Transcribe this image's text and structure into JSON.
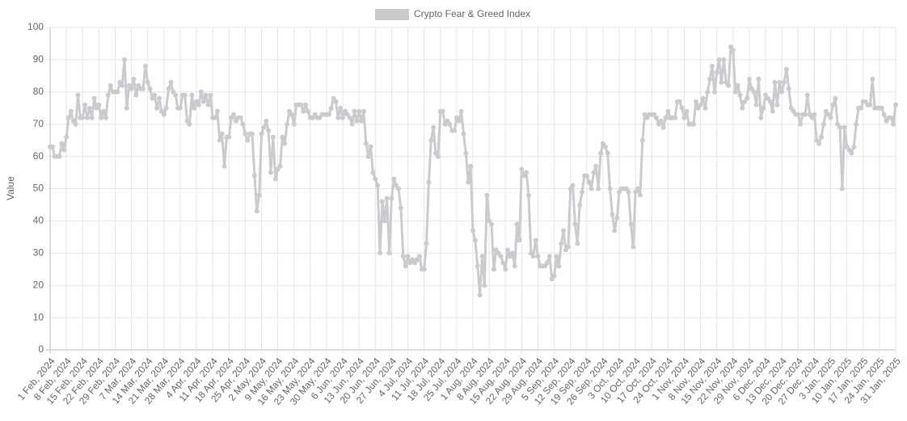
{
  "chart_data": {
    "type": "line",
    "y_label": "Value",
    "legend": "top",
    "ylim": [
      0,
      100
    ],
    "yticks": [
      0,
      10,
      20,
      30,
      40,
      50,
      60,
      70,
      80,
      90,
      100
    ],
    "grid": true,
    "categories": [
      "1 Feb, 2024",
      null,
      null,
      null,
      null,
      null,
      null,
      "8 Feb, 2024",
      null,
      null,
      null,
      null,
      null,
      null,
      "15 Feb, 2024",
      null,
      null,
      null,
      null,
      null,
      null,
      "22 Feb, 2024",
      null,
      null,
      null,
      null,
      null,
      null,
      "29 Feb, 2024",
      null,
      null,
      null,
      null,
      null,
      null,
      "7 Mar, 2024",
      null,
      null,
      null,
      null,
      null,
      null,
      "14 Mar, 2024",
      null,
      null,
      null,
      null,
      null,
      null,
      "21 Mar, 2024",
      null,
      null,
      null,
      null,
      null,
      null,
      "28 Mar, 2024",
      null,
      null,
      null,
      null,
      null,
      null,
      "4 Apr, 2024",
      null,
      null,
      null,
      null,
      null,
      null,
      "11 Apr, 2024",
      null,
      null,
      null,
      null,
      null,
      null,
      "18 Apr, 2024",
      null,
      null,
      null,
      null,
      null,
      null,
      "25 Apr, 2024",
      null,
      null,
      null,
      null,
      null,
      null,
      "2 May, 2024",
      null,
      null,
      null,
      null,
      null,
      null,
      "9 May, 2024",
      null,
      null,
      null,
      null,
      null,
      null,
      "16 May, 2024",
      null,
      null,
      null,
      null,
      null,
      null,
      "23 May, 2024",
      null,
      null,
      null,
      null,
      null,
      null,
      "30 May, 2024",
      null,
      null,
      null,
      null,
      null,
      null,
      "6 Jun, 2024",
      null,
      null,
      null,
      null,
      null,
      null,
      "13 Jun, 2024",
      null,
      null,
      null,
      null,
      null,
      null,
      "20 Jun, 2024",
      null,
      null,
      null,
      null,
      null,
      null,
      "27 Jun, 2024",
      null,
      null,
      null,
      null,
      null,
      null,
      "4 Jul, 2024",
      null,
      null,
      null,
      null,
      null,
      null,
      "11 Jul, 2024",
      null,
      null,
      null,
      null,
      null,
      null,
      "18 Jul, 2024",
      null,
      null,
      null,
      null,
      null,
      null,
      "25 Jul, 2024",
      null,
      null,
      null,
      null,
      null,
      null,
      "1 Aug, 2024",
      null,
      null,
      null,
      null,
      null,
      null,
      "8 Aug, 2024",
      null,
      null,
      null,
      null,
      null,
      null,
      "15 Aug, 2024",
      null,
      null,
      null,
      null,
      null,
      null,
      "22 Aug, 2024",
      null,
      null,
      null,
      null,
      null,
      null,
      "29 Aug, 2024",
      null,
      null,
      null,
      null,
      null,
      null,
      "5 Sep, 2024",
      null,
      null,
      null,
      null,
      null,
      null,
      "12 Sep, 2024",
      null,
      null,
      null,
      null,
      null,
      null,
      "19 Sep, 2024",
      null,
      null,
      null,
      null,
      null,
      null,
      "26 Sep, 2024",
      null,
      null,
      null,
      null,
      null,
      null,
      "3 Oct, 2024",
      null,
      null,
      null,
      null,
      null,
      null,
      "10 Oct, 2024",
      null,
      null,
      null,
      null,
      null,
      null,
      "17 Oct, 2024",
      null,
      null,
      null,
      null,
      null,
      null,
      "24 Oct, 2024",
      null,
      null,
      null,
      null,
      null,
      null,
      "1 Nov, 2024",
      null,
      null,
      null,
      null,
      null,
      null,
      "8 Nov, 2024",
      null,
      null,
      null,
      null,
      null,
      null,
      "15 Nov, 2024",
      null,
      null,
      null,
      null,
      null,
      null,
      "22 Nov, 2024",
      null,
      null,
      null,
      null,
      null,
      null,
      "29 Nov, 2024",
      null,
      null,
      null,
      null,
      null,
      null,
      "6 Dec, 2024",
      null,
      null,
      null,
      null,
      null,
      null,
      "13 Dec, 2024",
      null,
      null,
      null,
      null,
      null,
      null,
      "20 Dec, 2024",
      null,
      null,
      null,
      null,
      null,
      null,
      "27 Dec, 2024",
      null,
      null,
      null,
      null,
      null,
      null,
      "3 Jan, 2025",
      null,
      null,
      null,
      null,
      null,
      null,
      "10 Jan, 2025",
      null,
      null,
      null,
      null,
      null,
      null,
      "17 Jan, 2025",
      null,
      null,
      null,
      null,
      null,
      null,
      "24 Jan, 2025",
      null,
      null,
      null,
      null,
      null,
      null,
      "31 Jan, 2025"
    ],
    "series": [
      {
        "name": "Crypto Fear & Greed Index",
        "color": "#c9cbcf",
        "values": [
          63,
          63,
          60,
          60,
          60,
          64,
          62,
          66,
          72,
          74,
          71,
          70,
          79,
          72,
          72,
          76,
          72,
          75,
          72,
          78,
          75,
          76,
          72,
          74,
          72,
          79,
          82,
          80,
          80,
          80,
          83,
          82,
          90,
          75,
          82,
          81,
          84,
          79,
          82,
          81,
          81,
          88,
          83,
          81,
          78,
          79,
          75,
          78,
          74,
          73,
          75,
          81,
          83,
          80,
          79,
          75,
          75,
          79,
          79,
          71,
          70,
          79,
          75,
          77,
          76,
          80,
          77,
          79,
          76,
          79,
          72,
          72,
          74,
          65,
          67,
          57,
          66,
          66,
          72,
          73,
          71,
          72,
          72,
          70,
          67,
          65,
          67,
          67,
          54,
          43,
          48,
          67,
          69,
          71,
          68,
          55,
          66,
          53,
          56,
          57,
          66,
          64,
          70,
          74,
          73,
          70,
          76,
          76,
          76,
          74,
          76,
          74,
          72,
          72,
          73,
          72,
          72,
          73,
          73,
          73,
          73,
          75,
          78,
          77,
          72,
          75,
          72,
          74,
          73,
          72,
          70,
          74,
          71,
          74,
          71,
          74,
          64,
          60,
          63,
          55,
          53,
          51,
          30,
          46,
          40,
          47,
          30,
          47,
          53,
          51,
          50,
          44,
          29,
          26,
          29,
          27,
          28,
          27,
          28,
          29,
          25,
          25,
          33,
          52,
          65,
          69,
          61,
          60,
          74,
          74,
          70,
          71,
          70,
          68,
          68,
          72,
          71,
          74,
          67,
          61,
          52,
          57,
          37,
          34,
          26,
          17,
          29,
          20,
          48,
          40,
          39,
          25,
          31,
          30,
          29,
          27,
          25,
          31,
          29,
          30,
          26,
          39,
          34,
          56,
          54,
          55,
          48,
          30,
          29,
          34,
          29,
          26,
          26,
          26,
          27,
          29,
          22,
          23,
          29,
          26,
          33,
          37,
          31,
          32,
          50,
          51,
          39,
          33,
          45,
          49,
          54,
          54,
          52,
          50,
          55,
          57,
          50,
          61,
          64,
          63,
          61,
          50,
          42,
          37,
          41,
          49,
          50,
          50,
          50,
          49,
          39,
          32,
          49,
          50,
          48,
          65,
          73,
          72,
          73,
          73,
          73,
          72,
          70,
          71,
          69,
          72,
          74,
          72,
          72,
          72,
          77,
          77,
          75,
          72,
          74,
          70,
          70,
          70,
          77,
          75,
          76,
          78,
          75,
          80,
          84,
          88,
          80,
          86,
          90,
          83,
          90,
          83,
          82,
          94,
          93,
          80,
          82,
          79,
          75,
          77,
          78,
          84,
          81,
          80,
          76,
          84,
          72,
          75,
          79,
          78,
          77,
          74,
          83,
          76,
          83,
          80,
          83,
          87,
          81,
          75,
          74,
          73,
          73,
          70,
          73,
          73,
          79,
          73,
          72,
          73,
          65,
          64,
          66,
          70,
          74,
          73,
          72,
          76,
          78,
          70,
          69,
          50,
          69,
          63,
          62,
          61,
          63,
          70,
          75,
          75,
          77,
          77,
          76,
          76,
          84,
          75,
          75,
          75,
          75,
          73,
          71,
          72,
          72,
          70,
          76
        ]
      }
    ]
  }
}
